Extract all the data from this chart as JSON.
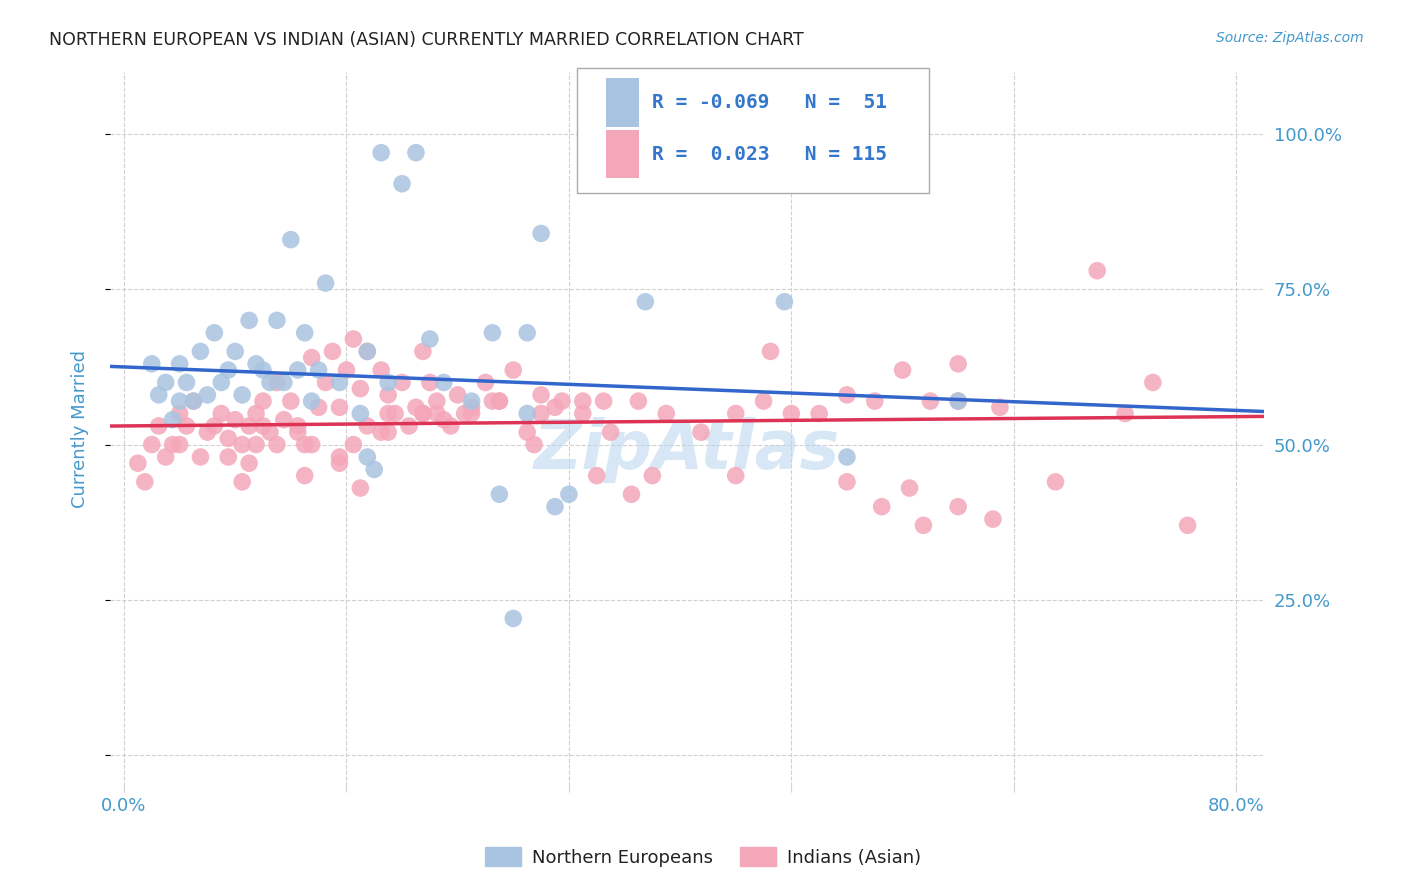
{
  "title": "NORTHERN EUROPEAN VS INDIAN (ASIAN) CURRENTLY MARRIED CORRELATION CHART",
  "source": "Source: ZipAtlas.com",
  "ylabel": "Currently Married",
  "y_tick_labels": [
    "",
    "25.0%",
    "50.0%",
    "75.0%",
    "100.0%"
  ],
  "y_tick_positions": [
    0.0,
    0.25,
    0.5,
    0.75,
    1.0
  ],
  "x_tick_positions": [
    0.0,
    0.16,
    0.32,
    0.48,
    0.64,
    0.8
  ],
  "xlim": [
    -0.01,
    0.82
  ],
  "ylim": [
    -0.05,
    1.1
  ],
  "blue_R": -0.069,
  "blue_N": 51,
  "pink_R": 0.023,
  "pink_N": 115,
  "blue_color": "#a8c4e0",
  "pink_color": "#f4a7b9",
  "blue_line_color": "#3366cc",
  "pink_line_color": "#dd3355",
  "legend_text_color": "#3377cc",
  "blue_line_start_y": 0.625,
  "blue_line_end_y": 0.555,
  "pink_line_start_y": 0.53,
  "pink_line_end_y": 0.545,
  "blue_scatter_x": [
    0.185,
    0.21,
    0.3,
    0.145,
    0.265,
    0.29,
    0.02,
    0.025,
    0.03,
    0.035,
    0.04,
    0.04,
    0.045,
    0.05,
    0.055,
    0.06,
    0.065,
    0.07,
    0.075,
    0.08,
    0.085,
    0.09,
    0.095,
    0.1,
    0.105,
    0.11,
    0.115,
    0.12,
    0.125,
    0.13,
    0.135,
    0.14,
    0.155,
    0.17,
    0.175,
    0.19,
    0.2,
    0.22,
    0.23,
    0.25,
    0.27,
    0.29,
    0.32,
    0.375,
    0.475,
    0.52,
    0.6,
    0.175,
    0.18,
    0.28,
    0.31
  ],
  "blue_scatter_y": [
    0.97,
    0.97,
    0.84,
    0.76,
    0.68,
    0.68,
    0.63,
    0.58,
    0.6,
    0.54,
    0.57,
    0.63,
    0.6,
    0.57,
    0.65,
    0.58,
    0.68,
    0.6,
    0.62,
    0.65,
    0.58,
    0.7,
    0.63,
    0.62,
    0.6,
    0.7,
    0.6,
    0.83,
    0.62,
    0.68,
    0.57,
    0.62,
    0.6,
    0.55,
    0.65,
    0.6,
    0.92,
    0.67,
    0.6,
    0.57,
    0.42,
    0.55,
    0.42,
    0.73,
    0.73,
    0.48,
    0.57,
    0.48,
    0.46,
    0.22,
    0.4
  ],
  "pink_scatter_x": [
    0.01,
    0.015,
    0.02,
    0.025,
    0.03,
    0.035,
    0.04,
    0.04,
    0.045,
    0.05,
    0.055,
    0.06,
    0.065,
    0.07,
    0.075,
    0.08,
    0.085,
    0.09,
    0.095,
    0.1,
    0.105,
    0.11,
    0.115,
    0.12,
    0.125,
    0.13,
    0.135,
    0.14,
    0.145,
    0.15,
    0.155,
    0.16,
    0.165,
    0.17,
    0.175,
    0.185,
    0.19,
    0.2,
    0.21,
    0.215,
    0.22,
    0.225,
    0.23,
    0.24,
    0.25,
    0.26,
    0.27,
    0.28,
    0.3,
    0.31,
    0.33,
    0.35,
    0.37,
    0.39,
    0.415,
    0.44,
    0.46,
    0.48,
    0.5,
    0.52,
    0.54,
    0.56,
    0.58,
    0.6,
    0.63,
    0.67,
    0.7,
    0.72,
    0.74,
    0.765,
    0.13,
    0.155,
    0.17,
    0.19,
    0.19,
    0.215,
    0.225,
    0.245,
    0.27,
    0.295,
    0.34,
    0.38,
    0.44,
    0.465,
    0.365,
    0.52,
    0.545,
    0.565,
    0.575,
    0.6,
    0.6,
    0.625,
    0.075,
    0.085,
    0.09,
    0.095,
    0.1,
    0.11,
    0.125,
    0.135,
    0.155,
    0.165,
    0.175,
    0.185,
    0.195,
    0.205,
    0.215,
    0.235,
    0.25,
    0.265,
    0.29,
    0.3,
    0.315,
    0.33,
    0.345
  ],
  "pink_scatter_y": [
    0.47,
    0.44,
    0.5,
    0.53,
    0.48,
    0.5,
    0.55,
    0.5,
    0.53,
    0.57,
    0.48,
    0.52,
    0.53,
    0.55,
    0.51,
    0.54,
    0.5,
    0.53,
    0.55,
    0.57,
    0.52,
    0.6,
    0.54,
    0.57,
    0.53,
    0.5,
    0.64,
    0.56,
    0.6,
    0.65,
    0.56,
    0.62,
    0.67,
    0.59,
    0.65,
    0.62,
    0.58,
    0.6,
    0.56,
    0.65,
    0.6,
    0.57,
    0.54,
    0.58,
    0.56,
    0.6,
    0.57,
    0.62,
    0.58,
    0.56,
    0.57,
    0.52,
    0.57,
    0.55,
    0.52,
    0.55,
    0.57,
    0.55,
    0.55,
    0.58,
    0.57,
    0.62,
    0.57,
    0.57,
    0.56,
    0.44,
    0.78,
    0.55,
    0.6,
    0.37,
    0.45,
    0.48,
    0.43,
    0.52,
    0.55,
    0.55,
    0.55,
    0.55,
    0.57,
    0.5,
    0.45,
    0.45,
    0.45,
    0.65,
    0.42,
    0.44,
    0.4,
    0.43,
    0.37,
    0.4,
    0.63,
    0.38,
    0.48,
    0.44,
    0.47,
    0.5,
    0.53,
    0.5,
    0.52,
    0.5,
    0.47,
    0.5,
    0.53,
    0.52,
    0.55,
    0.53,
    0.55,
    0.53,
    0.55,
    0.57,
    0.52,
    0.55,
    0.57,
    0.55,
    0.57
  ],
  "background_color": "#ffffff",
  "grid_color": "#d0d0d0",
  "axis_label_color": "#4499cc",
  "title_color": "#222222"
}
